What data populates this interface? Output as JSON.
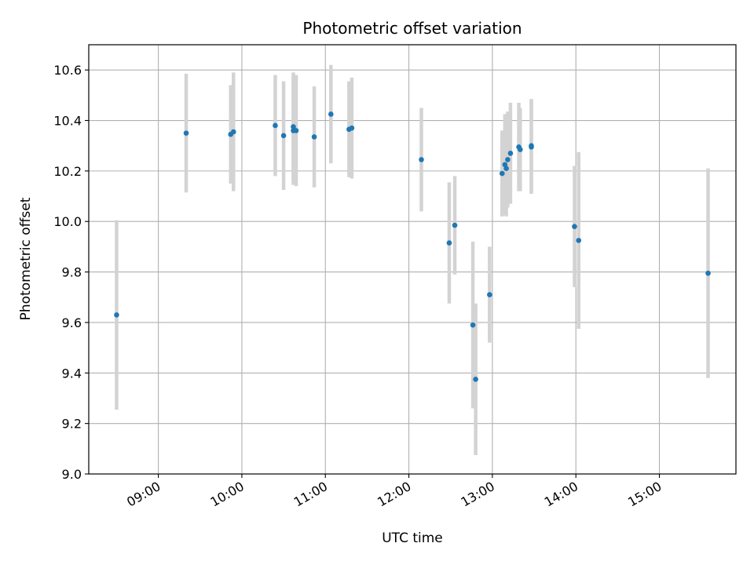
{
  "chart_data": {
    "type": "scatter",
    "title": "Photometric offset variation",
    "xlabel": "UTC time",
    "ylabel": "Photometric offset",
    "x_tick_labels": [
      "09:00",
      "10:00",
      "11:00",
      "12:00",
      "13:00",
      "14:00",
      "15:00"
    ],
    "y_tick_labels": [
      "9.0",
      "9.2",
      "9.4",
      "9.6",
      "9.8",
      "10.0",
      "10.2",
      "10.4",
      "10.6"
    ],
    "xlim": [
      "08:10",
      "15:55"
    ],
    "ylim": [
      9.0,
      10.7
    ],
    "grid": true,
    "colors": {
      "points": "#1f77b4",
      "error_bars": "#d3d3d3",
      "grid": "#b0b0b0"
    },
    "points": [
      {
        "x": "08:30",
        "y": 9.63,
        "err": 0.375
      },
      {
        "x": "09:20",
        "y": 10.35,
        "err": 0.235
      },
      {
        "x": "09:52",
        "y": 10.345,
        "err": 0.195
      },
      {
        "x": "09:54",
        "y": 10.355,
        "err": 0.235
      },
      {
        "x": "10:24",
        "y": 10.38,
        "err": 0.2
      },
      {
        "x": "10:30",
        "y": 10.34,
        "err": 0.215
      },
      {
        "x": "10:37",
        "y": 10.375,
        "err": 0.215
      },
      {
        "x": "10:37",
        "y": 10.36,
        "err": 0.215
      },
      {
        "x": "10:39",
        "y": 10.36,
        "err": 0.22
      },
      {
        "x": "10:52",
        "y": 10.335,
        "err": 0.2
      },
      {
        "x": "11:04",
        "y": 10.425,
        "err": 0.195
      },
      {
        "x": "11:17",
        "y": 10.365,
        "err": 0.19
      },
      {
        "x": "11:19",
        "y": 10.37,
        "err": 0.2
      },
      {
        "x": "12:09",
        "y": 10.245,
        "err": 0.205
      },
      {
        "x": "12:29",
        "y": 9.915,
        "err": 0.24
      },
      {
        "x": "12:33",
        "y": 9.985,
        "err": 0.195
      },
      {
        "x": "12:46",
        "y": 9.59,
        "err": 0.33
      },
      {
        "x": "12:48",
        "y": 9.375,
        "err": 0.3
      },
      {
        "x": "12:58",
        "y": 9.71,
        "err": 0.19
      },
      {
        "x": "13:07",
        "y": 10.19,
        "err": 0.17
      },
      {
        "x": "13:09",
        "y": 10.225,
        "err": 0.2
      },
      {
        "x": "13:10",
        "y": 10.21,
        "err": 0.19
      },
      {
        "x": "13:11",
        "y": 10.245,
        "err": 0.19
      },
      {
        "x": "13:13",
        "y": 10.27,
        "err": 0.2
      },
      {
        "x": "13:19",
        "y": 10.295,
        "err": 0.175
      },
      {
        "x": "13:20",
        "y": 10.285,
        "err": 0.165
      },
      {
        "x": "13:28",
        "y": 10.295,
        "err": 0.185
      },
      {
        "x": "13:28",
        "y": 10.3,
        "err": 0.185
      },
      {
        "x": "13:59",
        "y": 9.98,
        "err": 0.24
      },
      {
        "x": "14:02",
        "y": 9.925,
        "err": 0.35
      },
      {
        "x": "15:35",
        "y": 9.795,
        "err": 0.415
      }
    ]
  }
}
